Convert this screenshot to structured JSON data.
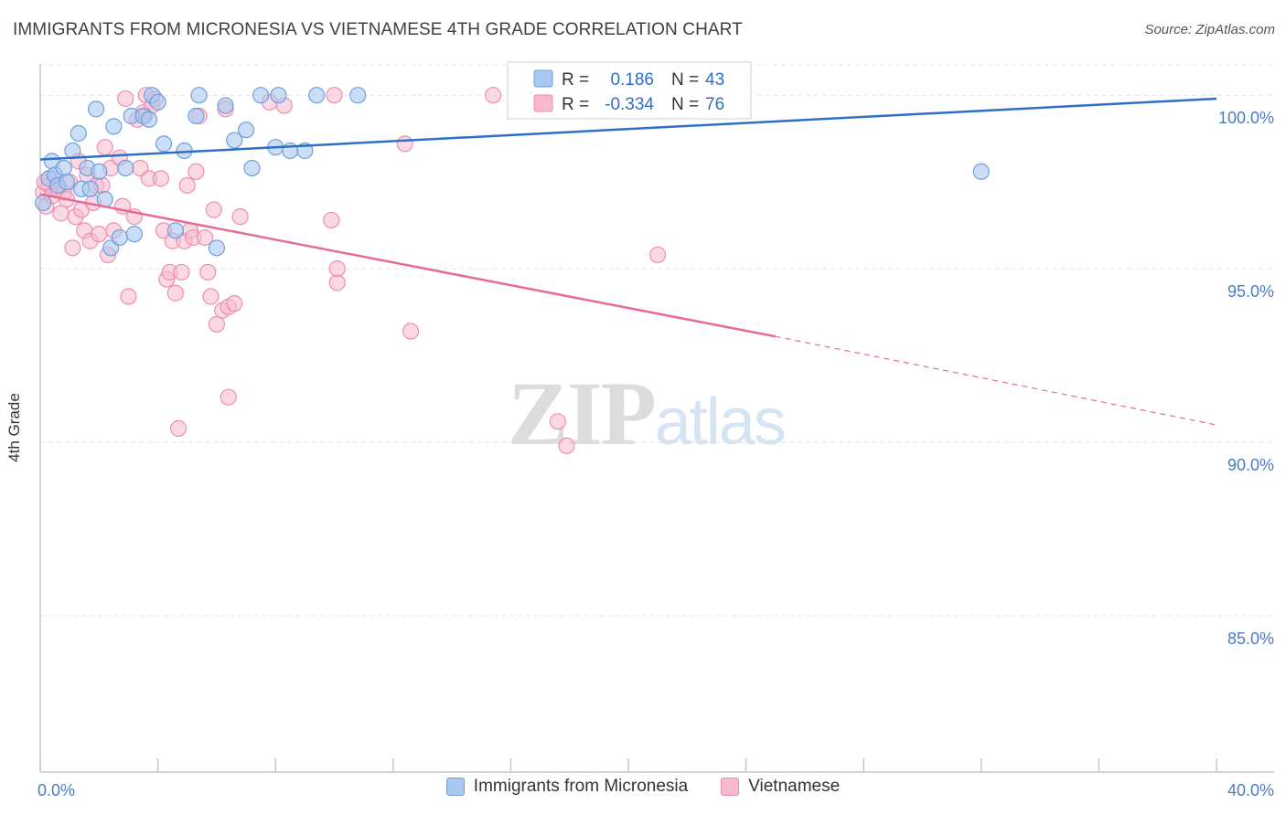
{
  "title": "IMMIGRANTS FROM MICRONESIA VS VIETNAMESE 4TH GRADE CORRELATION CHART",
  "source": "Source: ZipAtlas.com",
  "watermark": {
    "zip": "ZIP",
    "atlas": "atlas"
  },
  "colors": {
    "blue_fill": "#a9c8f0",
    "blue_stroke": "#6f9fdc",
    "blue_line": "#2f6fc4",
    "pink_fill": "#f6b9cd",
    "pink_stroke": "#ee8eaf",
    "pink_line": "#e56b96",
    "tick_text": "#4a7cc4",
    "grid": "#e3e3e3"
  },
  "legend_box": [
    {
      "r_label": "R =",
      "r_value": "0.186",
      "n_label": "N =",
      "n_value": "43"
    },
    {
      "r_label": "R =",
      "r_value": "-0.334",
      "n_label": "N =",
      "n_value": "76"
    }
  ],
  "bottom_legend": [
    {
      "label": "Immigrants from Micronesia"
    },
    {
      "label": "Vietnamese"
    }
  ],
  "chart_data": {
    "type": "scatter",
    "title": "IMMIGRANTS FROM MICRONESIA VS VIETNAMESE 4TH GRADE CORRELATION CHART",
    "xlabel": "",
    "ylabel": "4th Grade",
    "xlim": [
      0,
      40
    ],
    "ylim": [
      80.5,
      100.9
    ],
    "x_tick_labels": [
      "0.0%",
      "40.0%"
    ],
    "y_ticks": [
      85,
      90,
      95,
      100
    ],
    "y_tick_labels": [
      "85.0%",
      "90.0%",
      "95.0%",
      "100.0%"
    ],
    "series": [
      {
        "name": "Immigrants from Micronesia",
        "R": 0.186,
        "N": 43,
        "trend": {
          "x0": 0,
          "y0": 98.15,
          "x1": 40,
          "y1": 99.9
        },
        "points": [
          [
            0.1,
            96.9
          ],
          [
            0.3,
            97.6
          ],
          [
            0.4,
            98.1
          ],
          [
            0.5,
            97.7
          ],
          [
            0.6,
            97.4
          ],
          [
            0.8,
            97.9
          ],
          [
            0.9,
            97.5
          ],
          [
            1.1,
            98.4
          ],
          [
            1.3,
            98.9
          ],
          [
            1.4,
            97.3
          ],
          [
            1.6,
            97.9
          ],
          [
            1.7,
            97.3
          ],
          [
            1.9,
            99.6
          ],
          [
            2.0,
            97.8
          ],
          [
            2.2,
            97.0
          ],
          [
            2.4,
            95.6
          ],
          [
            2.5,
            99.1
          ],
          [
            2.7,
            95.9
          ],
          [
            2.9,
            97.9
          ],
          [
            3.1,
            99.4
          ],
          [
            3.2,
            96.0
          ],
          [
            3.5,
            99.4
          ],
          [
            3.7,
            99.3
          ],
          [
            3.8,
            100.0
          ],
          [
            4.0,
            99.8
          ],
          [
            4.2,
            98.6
          ],
          [
            4.6,
            96.1
          ],
          [
            4.9,
            98.4
          ],
          [
            5.3,
            99.4
          ],
          [
            5.4,
            100.0
          ],
          [
            6.0,
            95.6
          ],
          [
            6.3,
            99.7
          ],
          [
            6.6,
            98.7
          ],
          [
            7.0,
            99.0
          ],
          [
            7.2,
            97.9
          ],
          [
            7.5,
            100.0
          ],
          [
            8.0,
            98.5
          ],
          [
            8.1,
            100.0
          ],
          [
            8.5,
            98.4
          ],
          [
            9.0,
            98.4
          ],
          [
            9.4,
            100.0
          ],
          [
            10.8,
            100.0
          ],
          [
            32.0,
            97.8
          ]
        ]
      },
      {
        "name": "Vietnamese",
        "R": -0.334,
        "N": 76,
        "trend": {
          "x0": 0,
          "y0": 97.15,
          "x1": 25,
          "y1": 93.05
        },
        "trend_dashed": {
          "x0": 25,
          "y0": 93.05,
          "x1": 40,
          "y1": 90.5
        },
        "points": [
          [
            0.1,
            97.2
          ],
          [
            0.2,
            96.8
          ],
          [
            0.3,
            97.4
          ],
          [
            0.4,
            97.1
          ],
          [
            0.5,
            97.6
          ],
          [
            0.6,
            97.3
          ],
          [
            0.7,
            96.6
          ],
          [
            0.8,
            97.2
          ],
          [
            0.9,
            97.0
          ],
          [
            1.0,
            97.5
          ],
          [
            1.1,
            95.6
          ],
          [
            1.2,
            96.5
          ],
          [
            1.3,
            98.1
          ],
          [
            1.4,
            96.7
          ],
          [
            1.5,
            96.1
          ],
          [
            1.6,
            97.7
          ],
          [
            1.7,
            95.8
          ],
          [
            1.8,
            96.9
          ],
          [
            1.9,
            97.4
          ],
          [
            2.0,
            96.0
          ],
          [
            2.1,
            97.4
          ],
          [
            2.2,
            98.5
          ],
          [
            2.3,
            95.4
          ],
          [
            2.4,
            97.9
          ],
          [
            2.5,
            96.1
          ],
          [
            2.7,
            98.2
          ],
          [
            2.8,
            96.8
          ],
          [
            2.9,
            99.9
          ],
          [
            3.0,
            94.2
          ],
          [
            3.2,
            96.5
          ],
          [
            3.3,
            99.3
          ],
          [
            3.4,
            97.9
          ],
          [
            3.5,
            99.5
          ],
          [
            3.6,
            100.0
          ],
          [
            3.7,
            97.6
          ],
          [
            3.8,
            99.7
          ],
          [
            3.9,
            99.9
          ],
          [
            4.1,
            97.6
          ],
          [
            4.2,
            96.1
          ],
          [
            4.3,
            94.7
          ],
          [
            4.4,
            94.9
          ],
          [
            4.5,
            95.8
          ],
          [
            4.6,
            94.3
          ],
          [
            4.8,
            94.9
          ],
          [
            4.9,
            95.8
          ],
          [
            5.0,
            97.4
          ],
          [
            5.1,
            96.1
          ],
          [
            5.2,
            95.9
          ],
          [
            5.3,
            97.8
          ],
          [
            5.4,
            99.4
          ],
          [
            5.6,
            95.9
          ],
          [
            5.7,
            94.9
          ],
          [
            5.8,
            94.2
          ],
          [
            5.9,
            96.7
          ],
          [
            6.0,
            93.4
          ],
          [
            6.2,
            93.8
          ],
          [
            6.3,
            99.6
          ],
          [
            6.4,
            93.9
          ],
          [
            6.6,
            94.0
          ],
          [
            6.8,
            96.5
          ],
          [
            7.8,
            99.8
          ],
          [
            8.3,
            99.7
          ],
          [
            4.7,
            90.4
          ],
          [
            6.4,
            91.3
          ],
          [
            9.9,
            96.4
          ],
          [
            10.0,
            100.0
          ],
          [
            10.1,
            94.6
          ],
          [
            10.1,
            95.0
          ],
          [
            12.4,
            98.6
          ],
          [
            12.6,
            93.2
          ],
          [
            15.4,
            100.0
          ],
          [
            17.6,
            90.6
          ],
          [
            17.9,
            89.9
          ],
          [
            21.0,
            95.4
          ],
          [
            0.15,
            97.5
          ],
          [
            3.55,
            99.4
          ]
        ]
      }
    ]
  }
}
